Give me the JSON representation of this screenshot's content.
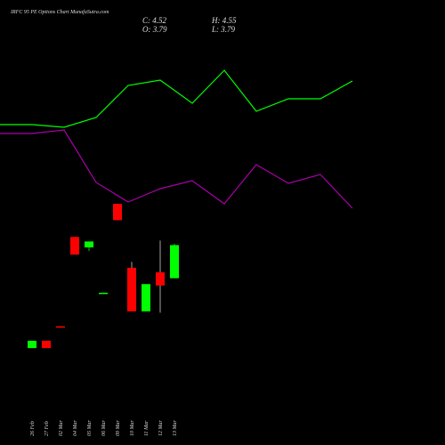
{
  "chart_data": [
    {
      "type": "candlestick",
      "title": "IRFC 95 PE Options  Chart MunafaSutra.com",
      "ohlc_labels": [
        "C: 4.52",
        "H: 4.55",
        "O: 3.79",
        "L: 3.79"
      ],
      "categories": [
        "26 Feb",
        "27 Feb",
        "02 Mar",
        "04 Mar",
        "05 Mar",
        "06 Mar",
        "09 Mar",
        "10 Mar",
        "11 Mar",
        "12 Mar",
        "13 Mar"
      ],
      "open": [
        2.25,
        2.41,
        2.73,
        4.7,
        4.47,
        3.45,
        5.43,
        4.02,
        3.06,
        3.92,
        3.79
      ],
      "high": [
        2.41,
        2.41,
        2.73,
        4.7,
        4.6,
        3.47,
        5.43,
        4.15,
        3.66,
        4.62,
        4.55
      ],
      "low": [
        2.25,
        2.25,
        2.7,
        4.31,
        4.39,
        3.45,
        5.07,
        3.06,
        3.06,
        3.03,
        3.79
      ],
      "close": [
        2.41,
        2.25,
        2.7,
        4.31,
        4.6,
        3.47,
        5.07,
        3.06,
        3.66,
        3.63,
        4.52
      ],
      "up_color": "#00ff00",
      "down_color": "#ff0000",
      "ylim": [
        1.8,
        6.0
      ]
    },
    {
      "type": "line",
      "categories": [
        null,
        null,
        null,
        null,
        null,
        null,
        null,
        null,
        null,
        null,
        null,
        null
      ],
      "series": [
        {
          "color": "#00ff00",
          "values": [
            60,
            60,
            58.5,
            64,
            82,
            85,
            72,
            90.5,
            67.5,
            74.5,
            74.5,
            84.5
          ]
        },
        {
          "color": "#aa00aa",
          "values": [
            55,
            55,
            57,
            27.5,
            16.5,
            24,
            28.5,
            15.5,
            37.5,
            27,
            32,
            13
          ]
        }
      ],
      "ylim": [
        0,
        100
      ]
    }
  ]
}
